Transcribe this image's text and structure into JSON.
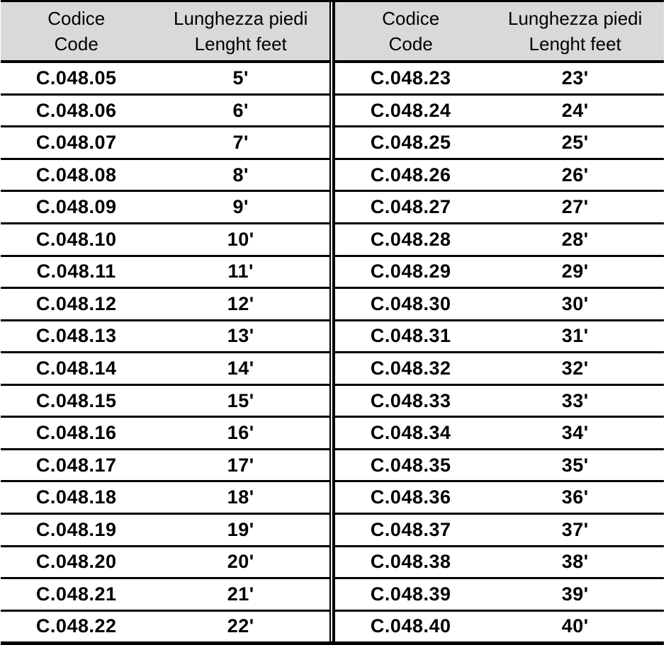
{
  "colors": {
    "header_bg": "#d9d9d9",
    "border": "#000000",
    "text": "#000000",
    "row_bg": "#ffffff"
  },
  "table": {
    "headers": {
      "code_it": "Codice",
      "code_en": "Code",
      "length_it": "Lunghezza piedi",
      "length_en": "Lenght feet"
    },
    "left_rows": [
      {
        "code": "C.048.05",
        "feet": "5'"
      },
      {
        "code": "C.048.06",
        "feet": "6'"
      },
      {
        "code": "C.048.07",
        "feet": "7'"
      },
      {
        "code": "C.048.08",
        "feet": "8'"
      },
      {
        "code": "C.048.09",
        "feet": "9'"
      },
      {
        "code": "C.048.10",
        "feet": "10'"
      },
      {
        "code": "C.048.11",
        "feet": "11'"
      },
      {
        "code": "C.048.12",
        "feet": "12'"
      },
      {
        "code": "C.048.13",
        "feet": "13'"
      },
      {
        "code": "C.048.14",
        "feet": "14'"
      },
      {
        "code": "C.048.15",
        "feet": "15'"
      },
      {
        "code": "C.048.16",
        "feet": "16'"
      },
      {
        "code": "C.048.17",
        "feet": "17'"
      },
      {
        "code": "C.048.18",
        "feet": "18'"
      },
      {
        "code": "C.048.19",
        "feet": "19'"
      },
      {
        "code": "C.048.20",
        "feet": "20'"
      },
      {
        "code": "C.048.21",
        "feet": "21'"
      },
      {
        "code": "C.048.22",
        "feet": "22'"
      }
    ],
    "right_rows": [
      {
        "code": "C.048.23",
        "feet": "23'"
      },
      {
        "code": "C.048.24",
        "feet": "24'"
      },
      {
        "code": "C.048.25",
        "feet": "25'"
      },
      {
        "code": "C.048.26",
        "feet": "26'"
      },
      {
        "code": "C.048.27",
        "feet": "27'"
      },
      {
        "code": "C.048.28",
        "feet": "28'"
      },
      {
        "code": "C.048.29",
        "feet": "29'"
      },
      {
        "code": "C.048.30",
        "feet": "30'"
      },
      {
        "code": "C.048.31",
        "feet": "31'"
      },
      {
        "code": "C.048.32",
        "feet": "32'"
      },
      {
        "code": "C.048.33",
        "feet": "33'"
      },
      {
        "code": "C.048.34",
        "feet": "34'"
      },
      {
        "code": "C.048.35",
        "feet": "35'"
      },
      {
        "code": "C.048.36",
        "feet": "36'"
      },
      {
        "code": "C.048.37",
        "feet": "37'"
      },
      {
        "code": "C.048.38",
        "feet": "38'"
      },
      {
        "code": "C.048.39",
        "feet": "39'"
      },
      {
        "code": "C.048.40",
        "feet": "40'"
      }
    ]
  }
}
